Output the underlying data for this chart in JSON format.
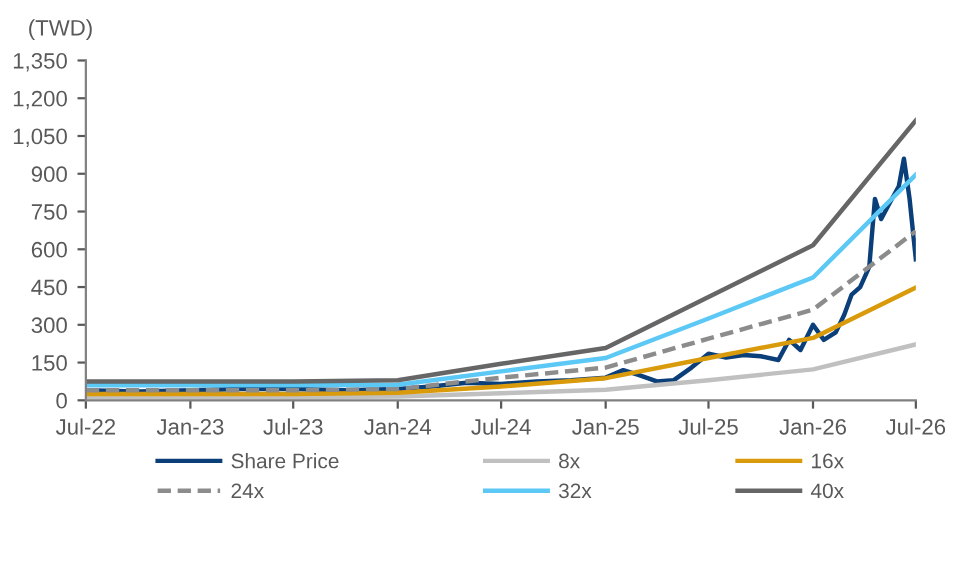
{
  "chart_data": {
    "type": "line",
    "ylabel": "(TWD)",
    "x": [
      "2022-07-01",
      "2023-07-01",
      "2024-01-01",
      "2024-07-01",
      "2025-01-01",
      "2025-07-01",
      "2026-01-01",
      "2026-07-01"
    ],
    "series": [
      {
        "name": "Share Price",
        "color": "#0b3f7a",
        "x": [
          "2022-07-01",
          "2022-10-01",
          "2023-01-01",
          "2023-04-01",
          "2023-07-01",
          "2023-10-01",
          "2024-01-01",
          "2024-03-01",
          "2024-05-01",
          "2024-07-01",
          "2024-09-01",
          "2024-11-01",
          "2025-01-01",
          "2025-02-01",
          "2025-03-01",
          "2025-04-01",
          "2025-05-01",
          "2025-06-01",
          "2025-07-01",
          "2025-08-01",
          "2025-09-01",
          "2025-10-01",
          "2025-11-01",
          "2025-11-20",
          "2025-12-10",
          "2026-01-01",
          "2026-01-20",
          "2026-02-10",
          "2026-02-25",
          "2026-03-10",
          "2026-03-25",
          "2026-04-10",
          "2026-04-20",
          "2026-05-01",
          "2026-05-15",
          "2026-06-01",
          "2026-06-10",
          "2026-06-20",
          "2026-07-01"
        ],
        "values": [
          40,
          35,
          40,
          45,
          45,
          40,
          45,
          55,
          70,
          65,
          75,
          80,
          90,
          120,
          100,
          75,
          80,
          130,
          185,
          170,
          180,
          175,
          160,
          240,
          200,
          300,
          240,
          270,
          340,
          420,
          450,
          530,
          800,
          720,
          780,
          850,
          960,
          800,
          560
        ]
      },
      {
        "name": "8x",
        "color": "#c0c0c0",
        "values": [
          12,
          12,
          15,
          28,
          42,
          80,
          123,
          222
        ]
      },
      {
        "name": "16x",
        "color": "#d99a0b",
        "values": [
          25,
          25,
          30,
          55,
          88,
          168,
          248,
          448
        ]
      },
      {
        "name": "24x",
        "color": "#8c8c8c",
        "line_style": "dashed",
        "values": [
          40,
          40,
          45,
          90,
          130,
          245,
          360,
          672
        ]
      },
      {
        "name": "32x",
        "color": "#5bc8f5",
        "values": [
          60,
          60,
          62,
          115,
          168,
          325,
          488,
          896
        ]
      },
      {
        "name": "40x",
        "color": "#666666",
        "values": [
          75,
          75,
          80,
          145,
          208,
          410,
          616,
          1112
        ]
      }
    ],
    "xlim": [
      "2022-07-01",
      "2026-07-01"
    ],
    "xticks": [
      {
        "value": "2022-07-01",
        "label": "Jul-22"
      },
      {
        "value": "2023-01-01",
        "label": "Jan-23"
      },
      {
        "value": "2023-07-01",
        "label": "Jul-23"
      },
      {
        "value": "2024-01-01",
        "label": "Jan-24"
      },
      {
        "value": "2024-07-01",
        "label": "Jul-24"
      },
      {
        "value": "2025-01-01",
        "label": "Jan-25"
      },
      {
        "value": "2025-07-01",
        "label": "Jul-25"
      },
      {
        "value": "2026-01-01",
        "label": "Jan-26"
      },
      {
        "value": "2026-07-01",
        "label": "Jul-26"
      }
    ],
    "ylim": [
      0,
      1350
    ],
    "yticks": [
      0,
      {
        "value": 150,
        "label": "150"
      },
      {
        "value": 300,
        "label": "300"
      },
      {
        "value": 450,
        "label": "450"
      },
      {
        "value": 600,
        "label": "600"
      },
      {
        "value": 750,
        "label": "750"
      },
      {
        "value": 900,
        "label": "900"
      },
      {
        "value": 1050,
        "label": "1,050"
      },
      {
        "value": 1200,
        "label": "1,200"
      },
      {
        "value": 1350,
        "label": "1,350"
      }
    ],
    "grid": false,
    "legend": "bottom"
  }
}
